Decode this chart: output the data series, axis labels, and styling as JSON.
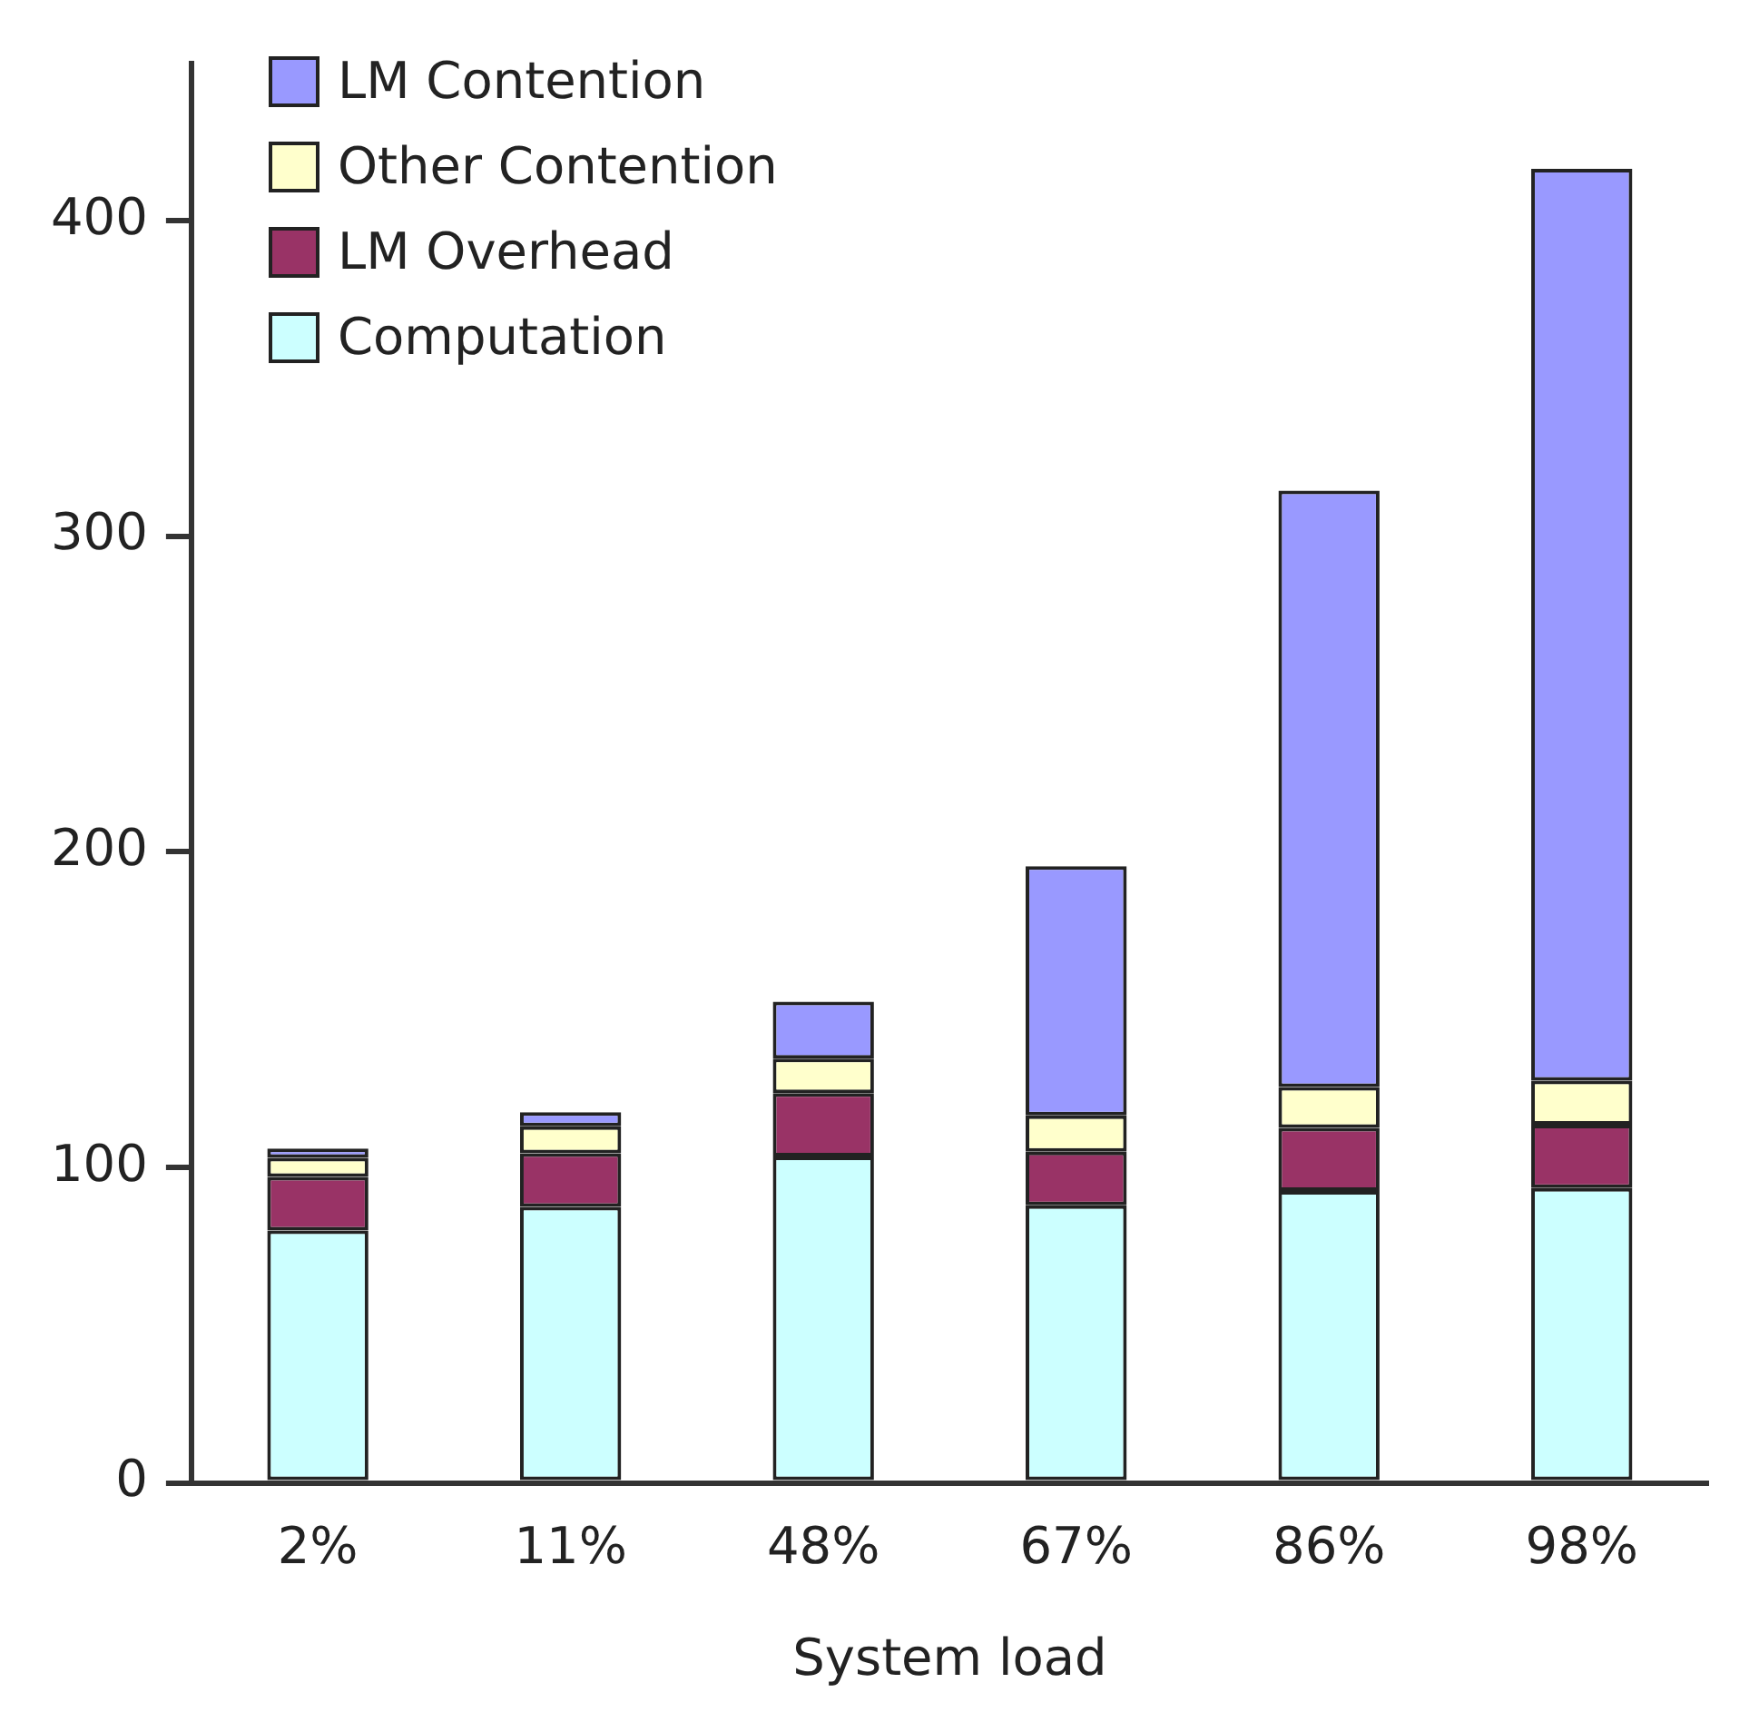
{
  "chart_data": {
    "type": "bar",
    "stacked": true,
    "xlabel": "System load",
    "categories": [
      "2%",
      "11%",
      "48%",
      "67%",
      "86%",
      "98%"
    ],
    "series": [
      {
        "name": "Computation",
        "color": "#ccffff",
        "values": [
          80,
          87.5,
          103.5,
          88,
          92.5,
          93.5
        ]
      },
      {
        "name": "LM Overhead",
        "color": "#993366",
        "values": [
          17,
          17,
          20,
          17,
          20,
          20
        ]
      },
      {
        "name": "Other Contention",
        "color": "#ffffcc",
        "values": [
          6,
          8.5,
          11,
          11.5,
          13,
          14
        ]
      },
      {
        "name": "LM Contention",
        "color": "#9999ff",
        "values": [
          3,
          4.5,
          18,
          79,
          189,
          289
        ]
      }
    ],
    "ylim": [
      0,
      450
    ],
    "yticks": [
      0,
      100,
      200,
      300,
      400
    ],
    "grid": false,
    "legend": "top left"
  }
}
